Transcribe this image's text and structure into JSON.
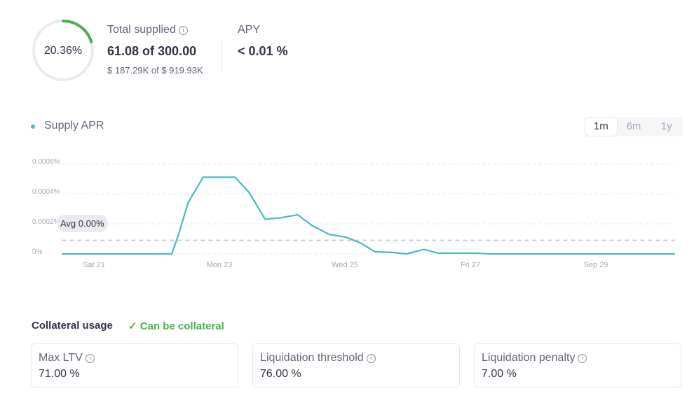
{
  "overview": {
    "utilization_percent": 20.36,
    "utilization_label": "20.36%",
    "total_supplied_label": "Total supplied",
    "total_supplied_value": "61.08 of 300.00",
    "total_supplied_usd": "$ 187.29K of $ 919.93K",
    "apy_label": "APY",
    "apy_value": "< 0.01 %",
    "info_icon": "i"
  },
  "chart_controls": {
    "legend_label": "Supply APR",
    "ranges": [
      "1m",
      "6m",
      "1y"
    ],
    "active_range": "1m"
  },
  "colors": {
    "line": "#46bac6",
    "gauge": "#4caf50",
    "track": "#eaebef",
    "avg": "#c8cad3"
  },
  "chart_data": {
    "type": "line",
    "title": "Supply APR",
    "xlabel": "",
    "ylabel": "",
    "x_unit": "days since Sat 21",
    "xlim": [
      -0.51,
      9.26
    ],
    "ylim": [
      0,
      0.0006
    ],
    "y_ticks": [
      0,
      0.0002,
      0.0004,
      0.0006
    ],
    "y_tick_labels": [
      "0%",
      "0.0002%",
      "0.0004%",
      "0.0006%"
    ],
    "x_ticks": [
      0,
      2,
      4,
      6,
      8
    ],
    "x_tick_labels": [
      "Sat 21",
      "Mon 23",
      "Wed 25",
      "Fri 27",
      "Sep 29"
    ],
    "grid": true,
    "series": [
      {
        "name": "Supply APR",
        "x": [
          -0.51,
          1.24,
          1.35,
          1.5,
          1.74,
          2.25,
          2.47,
          2.73,
          2.97,
          3.25,
          3.47,
          3.75,
          4.03,
          4.26,
          4.48,
          4.76,
          4.98,
          5.26,
          5.49,
          6.1,
          6.32,
          9.26
        ],
        "y": [
          0,
          0,
          0.00013,
          0.00034,
          0.00051,
          0.00051,
          0.00041,
          0.00023,
          0.00024,
          0.00026,
          0.00019,
          0.00013,
          0.00011,
          7e-05,
          1.4e-05,
          1e-05,
          0,
          3e-05,
          5e-06,
          5e-06,
          0,
          0
        ]
      }
    ],
    "average": 9e-05,
    "average_label": "Avg 0.00%"
  },
  "collateral": {
    "title": "Collateral usage",
    "status": "Can be collateral",
    "cards": [
      {
        "label": "Max LTV",
        "value": "71.00 %"
      },
      {
        "label": "Liquidation threshold",
        "value": "76.00 %"
      },
      {
        "label": "Liquidation penalty",
        "value": "7.00 %"
      }
    ]
  }
}
